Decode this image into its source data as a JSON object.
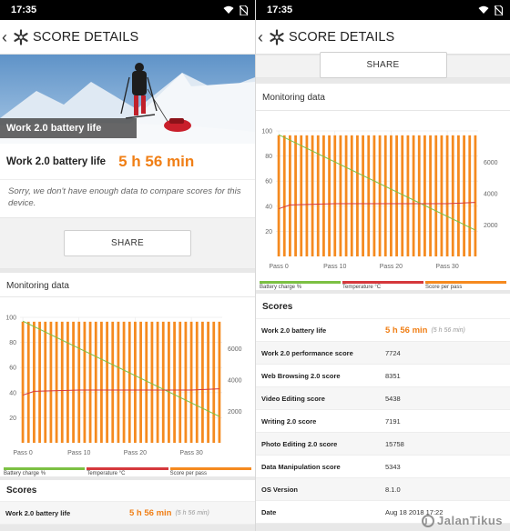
{
  "status": {
    "time": "17:35"
  },
  "appbar": {
    "title": "SCORE DETAILS"
  },
  "hero": {
    "banner": "Work 2.0 battery life"
  },
  "battery": {
    "label": "Work 2.0 battery life",
    "value": "5 h 56 min"
  },
  "sorry_text": "Sorry, we don't have enough data to compare scores for this device.",
  "share_label": "SHARE",
  "monitoring": {
    "title": "Monitoring data"
  },
  "chart_data": {
    "type": "line",
    "x_ticks": [
      "Pass 0",
      "Pass 10",
      "Pass 20",
      "Pass 30"
    ],
    "left_ticks": [
      "100",
      "80",
      "60",
      "40",
      "20"
    ],
    "right_ticks": [
      "6000",
      "4000",
      "2000"
    ],
    "ylim_left": [
      0,
      100
    ],
    "ylim_right": [
      0,
      8000
    ],
    "series": [
      {
        "name": "Battery charge %",
        "color": "#7cc043",
        "axis": "left",
        "x": [
          0,
          35
        ],
        "values": [
          97,
          21
        ]
      },
      {
        "name": "Temperature °C",
        "color": "#d5383c",
        "axis": "left",
        "x": [
          0,
          2,
          10,
          20,
          30,
          35
        ],
        "values": [
          38,
          41,
          42,
          42,
          42,
          43
        ]
      },
      {
        "name": "Score per pass",
        "color": "#f58a1f",
        "axis": "right",
        "type": "bar",
        "passes": 36,
        "value": 7720
      }
    ],
    "grid": true
  },
  "scores": {
    "title": "Scores",
    "rows": [
      {
        "name": "Work 2.0 battery life",
        "value": "5 h 56 min",
        "sub": "(5 h 56 min)",
        "highlight": true
      },
      {
        "name": "Work 2.0 performance score",
        "value": "7724"
      },
      {
        "name": "Web Browsing 2.0 score",
        "value": "8351"
      },
      {
        "name": "Video Editing score",
        "value": "5438"
      },
      {
        "name": "Writing 2.0 score",
        "value": "7191"
      },
      {
        "name": "Photo Editing 2.0 score",
        "value": "15758"
      },
      {
        "name": "Data Manipulation score",
        "value": "5343"
      },
      {
        "name": "OS Version",
        "value": "8.1.0"
      },
      {
        "name": "Date",
        "value": "Aug 18 2018 17:22"
      }
    ]
  },
  "watermark": "JalanTikus",
  "colors": {
    "accent": "#f07f16",
    "battery": "#7cc043",
    "temperature": "#d5383c",
    "score": "#f58a1f"
  }
}
